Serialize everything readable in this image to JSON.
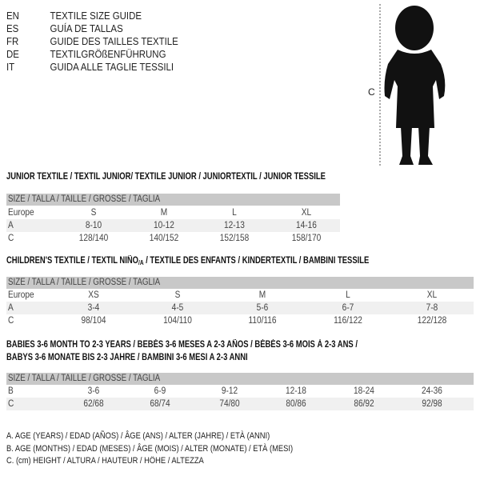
{
  "languages": [
    {
      "code": "EN",
      "text": "TEXTILE SIZE GUIDE"
    },
    {
      "code": "ES",
      "text": "GUÍA DE TALLAS"
    },
    {
      "code": "FR",
      "text": "GUIDE DES TAILLES TEXTILE"
    },
    {
      "code": "DE",
      "text": "TEXTILGRÖßENFÜHRUNG"
    },
    {
      "code": "IT",
      "text": "GUIDA ALLE TAGLIE TESSILI"
    }
  ],
  "figure": {
    "height_label": "C"
  },
  "junior": {
    "title": "JUNIOR TEXTILE / TEXTIL JUNIOR/ TEXTILE JUNIOR / JUNIORTEXTIL / JUNIOR TESSILE",
    "header": "SIZE / TALLA / TAILLE / GRÖSSE / TAGLIA",
    "rows": [
      {
        "label": "Europe",
        "cells": [
          "S",
          "M",
          "L",
          "XL"
        ]
      },
      {
        "label": "A",
        "cells": [
          "8-10",
          "10-12",
          "12-13",
          "14-16"
        ]
      },
      {
        "label": "C",
        "cells": [
          "128/140",
          "140/152",
          "152/158",
          "158/170"
        ]
      }
    ]
  },
  "children": {
    "title_pre": "CHILDREN'S TEXTILE / TEXTIL NIÑO",
    "title_sub": "/A",
    "title_post": " / TEXTILE DES ENFANTS / KINDERTEXTIL / BAMBINI TESSILE",
    "header": "SIZE / TALLA / TAILLE / GRÖSSE / TAGLIA",
    "rows": [
      {
        "label": "Europe",
        "cells": [
          "XS",
          "S",
          "M",
          "L",
          "XL"
        ]
      },
      {
        "label": "A",
        "cells": [
          "3-4",
          "4-5",
          "5-6",
          "6-7",
          "7-8"
        ]
      },
      {
        "label": "C",
        "cells": [
          "98/104",
          "104/110",
          "110/116",
          "116/122",
          "122/128"
        ]
      }
    ]
  },
  "babies": {
    "title_line1": "BABIES 3-6 MONTH TO 2-3 YEARS / BEBÉS 3-6 MESES A 2-3 AÑOS / BÉBÉS 3-6 MOIS À 2-3 ANS /",
    "title_line2": "BABYS 3-6 MONATE BIS 2-3 JAHRE / BAMBINI 3-6 MESI A 2-3 ANNI",
    "header": "SIZE / TALLA / TAILLE / GRÖSSE / TAGLIA",
    "rows": [
      {
        "label": "B",
        "cells": [
          "3-6",
          "6-9",
          "9-12",
          "12-18",
          "18-24",
          "24-36"
        ]
      },
      {
        "label": "C",
        "cells": [
          "62/68",
          "68/74",
          "74/80",
          "80/86",
          "86/92",
          "92/98"
        ]
      }
    ]
  },
  "legend": [
    "A. AGE (YEARS) / EDAD (AÑOS) / ÂGE (ANS) / ALTER (JAHRE) / ETÀ (ANNI)",
    "B. AGE (MONTHS) / EDAD (MESES) / ÂGE (MOIS) / ALTER (MONATE) / ETÀ (MESI)",
    "C. (cm) HEIGHT / ALTURA / HAUTEUR / HÖHE / ALTEZZA"
  ]
}
